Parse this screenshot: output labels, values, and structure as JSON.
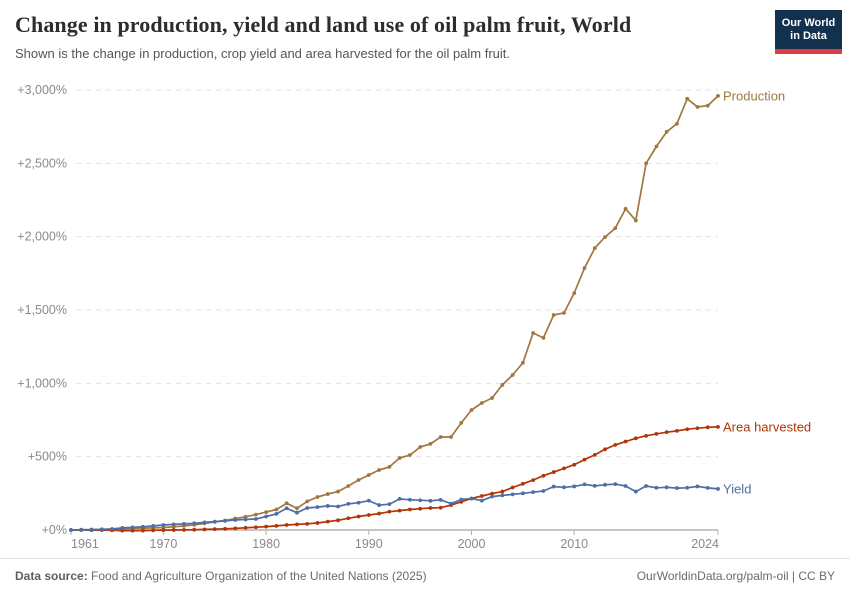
{
  "header": {
    "title": "Change in production, yield and land use of oil palm fruit, World",
    "subtitle": "Shown is the change in production, crop yield and area harvested for the oil palm fruit."
  },
  "logo": {
    "line1": "Our World",
    "line2": "in Data",
    "bg_color": "#12314f",
    "accent_color": "#dc3e45"
  },
  "footer": {
    "source_label": "Data source:",
    "source_text": " Food and Agriculture Organization of the United Nations (2025)",
    "credit": "OurWorldinData.org/palm-oil | CC BY"
  },
  "chart_data": {
    "type": "line",
    "title": "Change in production, yield and land use of oil palm fruit, World",
    "unit": "%",
    "grid": "horizontal-dashed",
    "legend_position": "end-of-line-labels",
    "x": {
      "start_year": 1961,
      "end_year": 2024,
      "ticks": [
        1961,
        1970,
        1980,
        1990,
        2000,
        2010,
        2024
      ]
    },
    "y": {
      "lim": [
        0,
        3000
      ],
      "ticks": [
        {
          "value": 0,
          "label": "+0%"
        },
        {
          "value": 500,
          "label": "+500%"
        },
        {
          "value": 1000,
          "label": "+1,000%"
        },
        {
          "value": 1500,
          "label": "+1,500%"
        },
        {
          "value": 2000,
          "label": "+2,000%"
        },
        {
          "value": 2500,
          "label": "+2,500%"
        },
        {
          "value": 3000,
          "label": "+3,000%"
        }
      ]
    },
    "series": [
      {
        "name": "Production",
        "color": "#a1773f",
        "values": [
          0,
          2,
          3,
          5,
          6,
          8,
          10,
          12,
          14,
          17,
          22,
          28,
          35,
          45,
          55,
          65,
          78,
          90,
          105,
          122,
          140,
          182,
          148,
          195,
          225,
          245,
          262,
          300,
          341,
          375,
          409,
          430,
          491,
          511,
          566,
          587,
          634,
          634,
          730,
          818,
          866,
          900,
          989,
          1057,
          1140,
          1343,
          1310,
          1466,
          1480,
          1615,
          1786,
          1922,
          1997,
          2058,
          2190,
          2110,
          2500,
          2615,
          2715,
          2770,
          2940,
          2885,
          2893,
          2960
        ]
      },
      {
        "name": "Area harvested",
        "color": "#b13507",
        "values": [
          0,
          0,
          -1,
          -1,
          -2,
          -4,
          -5,
          -4,
          -2,
          -1,
          0,
          1,
          2,
          4,
          6,
          8,
          11,
          15,
          19,
          23,
          28,
          34,
          38,
          42,
          48,
          57,
          66,
          80,
          92,
          102,
          112,
          125,
          132,
          140,
          145,
          150,
          152,
          170,
          192,
          215,
          232,
          248,
          262,
          290,
          315,
          340,
          370,
          395,
          420,
          445,
          480,
          512,
          550,
          580,
          603,
          625,
          642,
          655,
          667,
          676,
          687,
          694,
          700,
          703
        ]
      },
      {
        "name": "Yield",
        "color": "#4e6ea5",
        "values": [
          0,
          1,
          2,
          4,
          7,
          14,
          18,
          22,
          28,
          34,
          38,
          42,
          46,
          52,
          57,
          62,
          68,
          72,
          75,
          92,
          110,
          148,
          118,
          150,
          156,
          164,
          160,
          178,
          186,
          200,
          170,
          176,
          212,
          206,
          203,
          199,
          205,
          180,
          208,
          214,
          200,
          228,
          236,
          243,
          250,
          258,
          266,
          296,
          291,
          297,
          311,
          301,
          308,
          313,
          300,
          262,
          300,
          288,
          291,
          286,
          288,
          297,
          287,
          280
        ]
      }
    ]
  }
}
